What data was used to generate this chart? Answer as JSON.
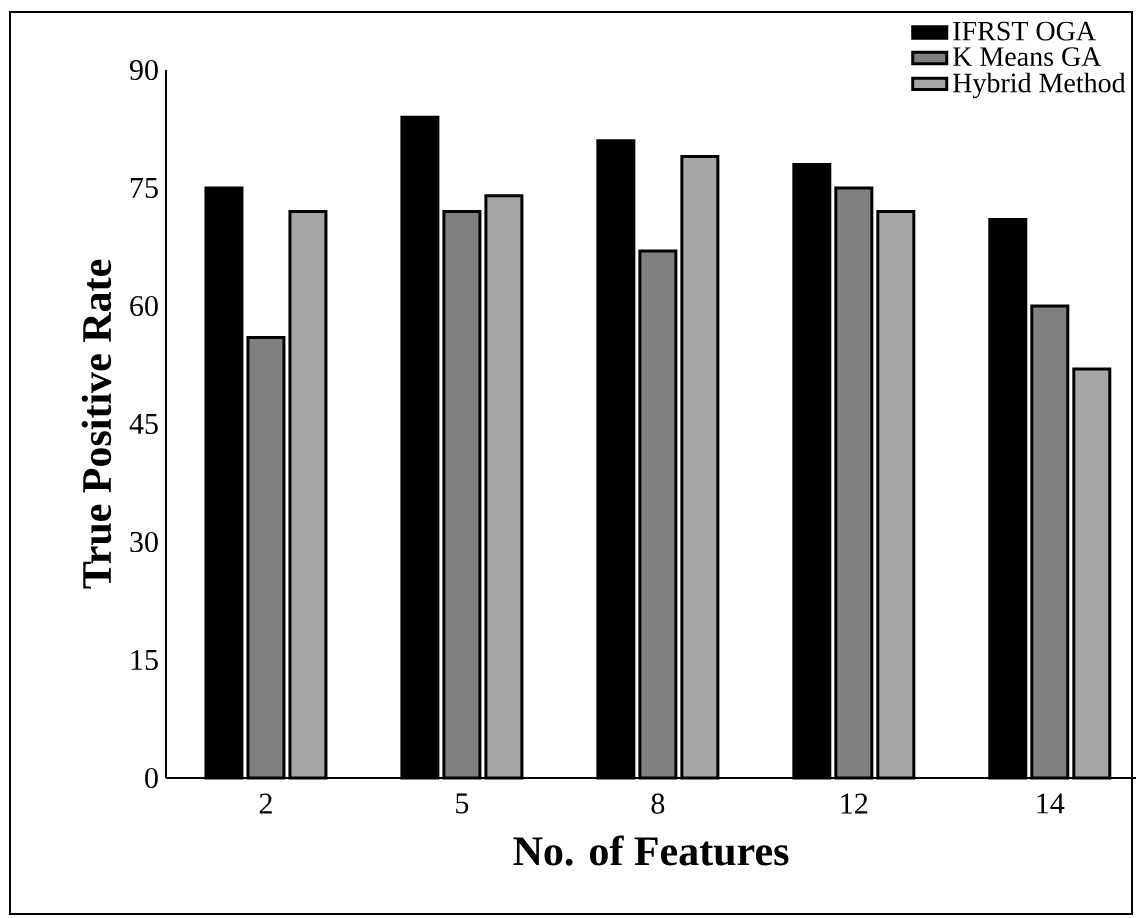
{
  "chart_data": {
    "type": "bar",
    "xlabel": "No. of Features",
    "ylabel": "True Positive Rate",
    "categories": [
      "2",
      "5",
      "8",
      "12",
      "14"
    ],
    "series": [
      {
        "name": "IFRST OGA",
        "color": "#000000",
        "values": [
          75,
          84,
          81,
          78,
          71
        ]
      },
      {
        "name": "K Means GA",
        "color": "#808080",
        "values": [
          56,
          72,
          67,
          75,
          60
        ]
      },
      {
        "name": "Hybrid Method",
        "color": "#a6a6a6",
        "values": [
          72,
          74,
          79,
          72,
          52
        ]
      }
    ],
    "ylim": [
      0,
      90
    ],
    "yticks": [
      0,
      15,
      30,
      45,
      60,
      75,
      90
    ],
    "legend": "top right"
  }
}
